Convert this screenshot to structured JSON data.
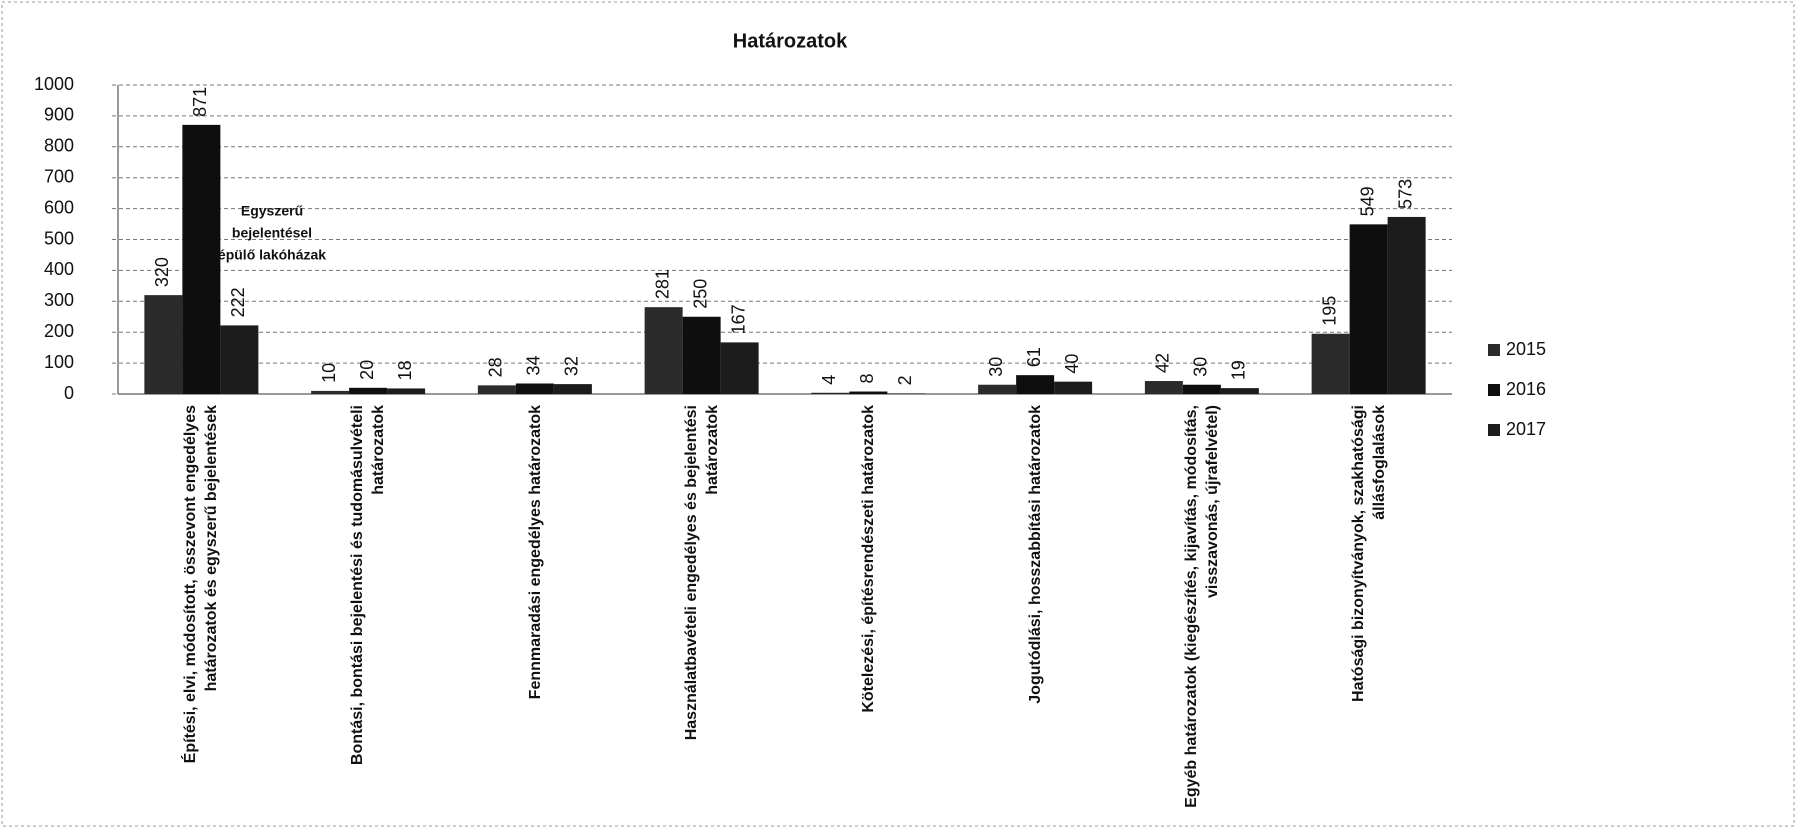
{
  "chart_data": {
    "type": "bar",
    "title": "Határozatok",
    "categories": [
      "Építési, elvi, módosított, összevont engedélyes határozatok és egyszerű bejelentések",
      "Bontási, bontási bejelentési és tudomásulvételi határozatok",
      "Fennmaradási engedélyes határozatok",
      "Használatbavételi engedélyes és bejelentési határozatok",
      "Kötelezési, építésrendészeti határozatok",
      "Jogutódlási, hosszabbítási határozatok",
      "Egyéb határozatok (kiegészítés, kijavítás, módosítás, visszavonás, újrafelvétel)",
      "Hatósági bizonyítványok, szakhatósági állásfoglalások"
    ],
    "series": [
      {
        "name": "2015",
        "color": "#2b2b2b",
        "values": [
          320,
          10,
          28,
          281,
          4,
          30,
          42,
          195
        ]
      },
      {
        "name": "2016",
        "color": "#0e0e0e",
        "values": [
          871,
          20,
          34,
          250,
          8,
          61,
          30,
          549
        ]
      },
      {
        "name": "2017",
        "color": "#1c1c1c",
        "values": [
          222,
          18,
          32,
          167,
          2,
          40,
          19,
          573
        ]
      }
    ],
    "annotations": [
      "Egyszerű",
      "bejelentésel",
      "épülő lakóházak"
    ],
    "ylim": [
      0,
      1000
    ],
    "yticks": [
      0,
      100,
      200,
      300,
      400,
      500,
      600,
      700,
      800,
      900,
      1000
    ],
    "grid": true,
    "legend": "right"
  }
}
